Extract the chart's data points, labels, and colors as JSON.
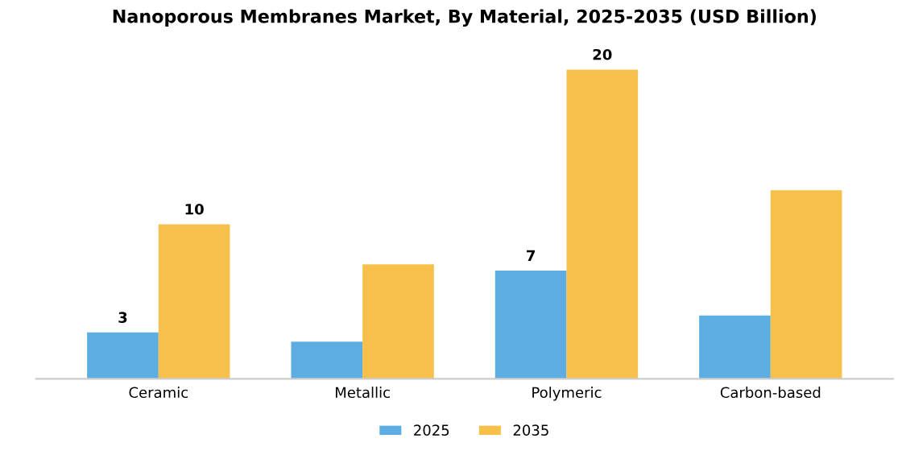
{
  "chart_data": {
    "type": "bar",
    "title": "Nanoporous Membranes Market, By Material, 2025-2035 (USD Billion)",
    "categories": [
      "Ceramic",
      "Metallic",
      "Polymeric",
      "Carbon-based"
    ],
    "series": [
      {
        "name": "2025",
        "color": "#5dade2",
        "values": [
          3,
          2.4,
          7,
          4.1
        ],
        "value_labels": [
          "3",
          null,
          "7",
          null
        ]
      },
      {
        "name": "2035",
        "color": "#f7c04a",
        "values": [
          10,
          7.4,
          20,
          12.2
        ],
        "value_labels": [
          "10",
          null,
          "20",
          null
        ]
      }
    ],
    "tick_labels": "x",
    "grid": false,
    "legend": "bottom"
  }
}
